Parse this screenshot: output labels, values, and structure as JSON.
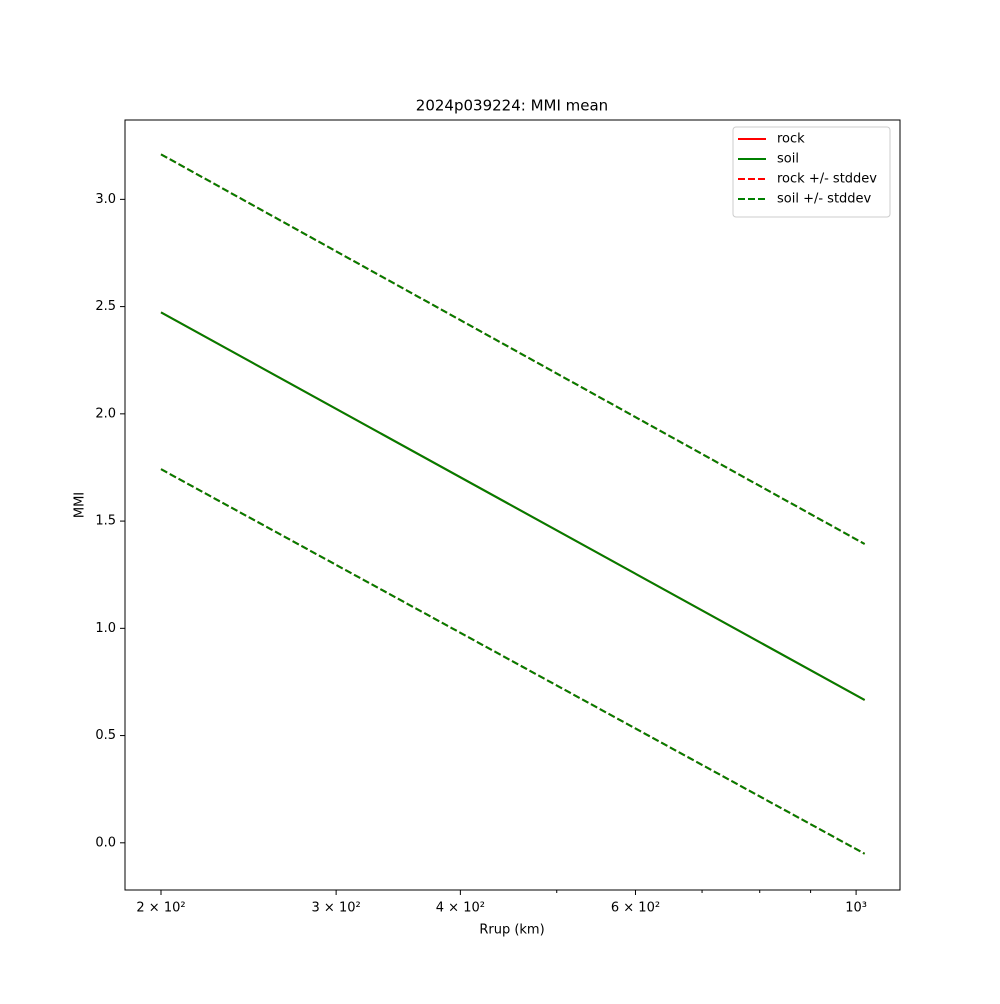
{
  "chart_data": {
    "type": "line",
    "title": "2024p039224: MMI mean",
    "xlabel": "Rrup (km)",
    "ylabel": "MMI",
    "xscale": "log",
    "x": [
      200,
      1020
    ],
    "series": [
      {
        "name": "rock",
        "color": "#ff0000",
        "style": "solid",
        "values": [
          2.473,
          0.666
        ]
      },
      {
        "name": "soil",
        "color": "#008000",
        "style": "solid",
        "values": [
          2.473,
          0.666
        ]
      },
      {
        "name": "rock +/- stddev",
        "color": "#ff0000",
        "style": "dashed",
        "values": [
          3.21,
          1.393
        ],
        "lower": [
          1.742,
          -0.051
        ]
      },
      {
        "name": "soil +/- stddev",
        "color": "#008000",
        "style": "dashed",
        "values": [
          3.21,
          1.393
        ],
        "lower": [
          1.742,
          -0.051
        ]
      }
    ],
    "xlim": [
      184,
      1107
    ],
    "xticks": [
      {
        "value": 200,
        "label": "2 × 10²"
      },
      {
        "value": 300,
        "label": "3 × 10²"
      },
      {
        "value": 400,
        "label": "4 × 10²"
      },
      {
        "value": 600,
        "label": "6 × 10²"
      },
      {
        "value": 1000,
        "label": "10³"
      }
    ],
    "xminor_ticks": [
      500,
      700,
      800,
      900
    ],
    "ylim": [
      -0.22,
      3.37
    ],
    "yticks": [
      {
        "value": 0,
        "label": "0.0"
      },
      0.5,
      {
        "value": 1,
        "label": "1.0"
      },
      1.5,
      {
        "value": 2,
        "label": "2.0"
      },
      2.5,
      {
        "value": 3,
        "label": "3.0"
      }
    ],
    "legend": "upper right",
    "grid": false
  }
}
